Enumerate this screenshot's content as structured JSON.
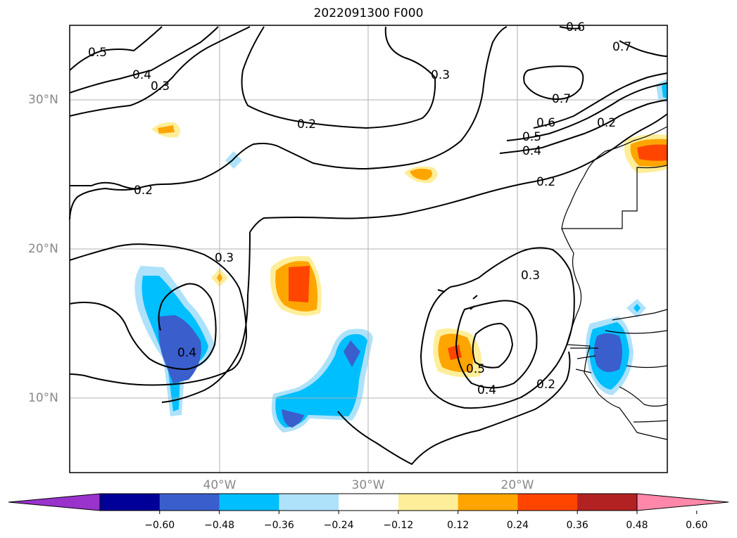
{
  "title": "2022091300 F000",
  "lat_labels": [
    "30°N",
    "20°N",
    "10°N"
  ],
  "lon_labels": [
    "40°W",
    "30°W",
    "20°W"
  ],
  "contour_labels": [
    "0.5",
    "0.4",
    "0.3",
    "0.3",
    "0.2",
    "0.2",
    "0.2",
    "0.3",
    "0.4",
    "0.4",
    "0.5",
    "0.3",
    "0.2",
    "0.4",
    "0.5",
    "0.6",
    "0.7",
    "0.7",
    "0.6",
    "0.2"
  ],
  "colorbar": {
    "ticks": [
      "−0.60",
      "−0.48",
      "−0.36",
      "−0.24",
      "−0.12",
      "0.12",
      "0.24",
      "0.36",
      "0.48",
      "0.60"
    ],
    "colors": [
      "#9933cc",
      "#000099",
      "#3a5fcd",
      "#00bfff",
      "#aee2fa",
      "#ffffff",
      "#ffee99",
      "#ffa500",
      "#ff4500",
      "#b22222",
      "#ff88aa"
    ]
  }
}
